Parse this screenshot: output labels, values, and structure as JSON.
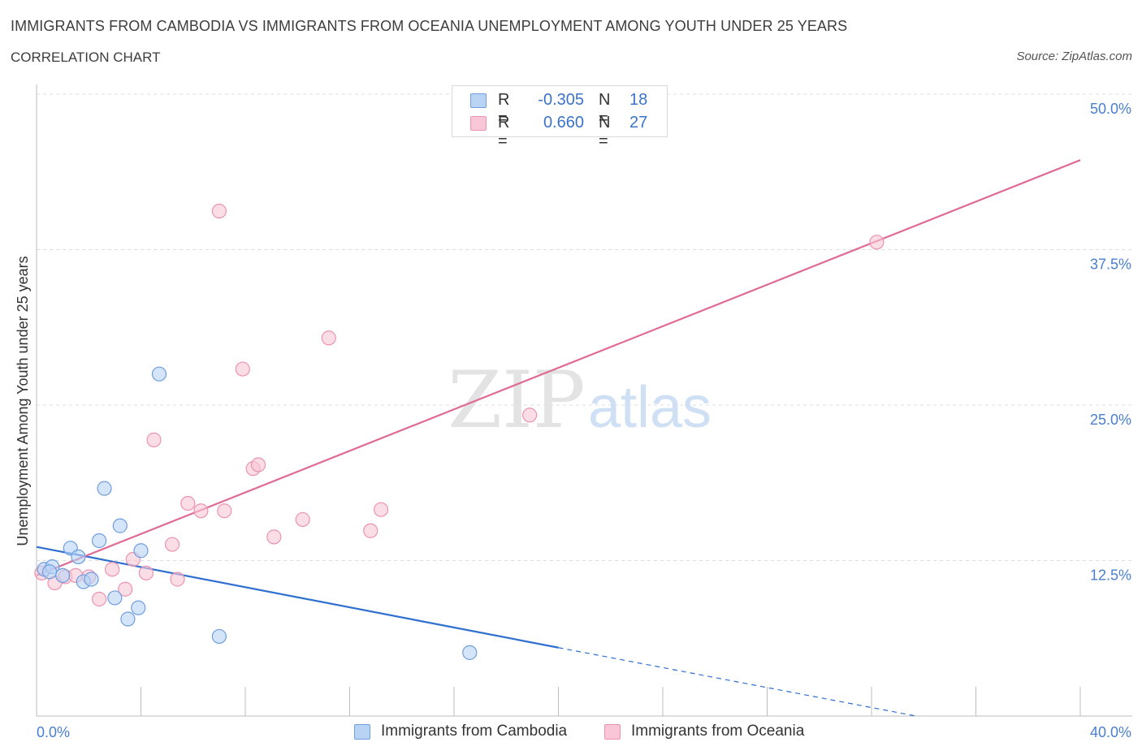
{
  "header": {
    "title": "IMMIGRANTS FROM CAMBODIA VS IMMIGRANTS FROM OCEANIA UNEMPLOYMENT AMONG YOUTH UNDER 25 YEARS",
    "subtitle": "CORRELATION CHART",
    "source": "Source: ZipAtlas.com"
  },
  "legend": {
    "series1": {
      "r_label": "R =",
      "r_value": "-0.305",
      "n_label": "N =",
      "n_value": "18"
    },
    "series2": {
      "r_label": "R =",
      "r_value": "0.660",
      "n_label": "N =",
      "n_value": "27"
    }
  },
  "bottom_legend": {
    "series1": "Immigrants from Cambodia",
    "series2": "Immigrants from Oceania"
  },
  "watermark": {
    "zip": "ZIP",
    "atlas": "atlas"
  },
  "colors": {
    "cambodia_fill": "#b9d3f5",
    "cambodia_stroke": "#6e9ee0",
    "cambodia_line": "#2f6fd0",
    "oceania_fill": "#f8c6d6",
    "oceania_stroke": "#ec93b1",
    "oceania_line": "#e06a96",
    "tick_text": "#4a7fd0"
  },
  "chart_data": {
    "type": "scatter",
    "title": "IMMIGRANTS FROM CAMBODIA VS IMMIGRANTS FROM OCEANIA UNEMPLOYMENT AMONG YOUTH UNDER 25 YEARS",
    "xlabel": "",
    "ylabel": "Unemployment Among Youth under 25 years",
    "xlim": [
      0,
      40
    ],
    "ylim": [
      0,
      50
    ],
    "x_tick_labels": [
      "0.0%",
      "40.0%"
    ],
    "y_ticks": [
      12.5,
      25.0,
      37.5,
      50.0
    ],
    "y_tick_labels": [
      "12.5%",
      "25.0%",
      "37.5%",
      "50.0%"
    ],
    "grid": true,
    "legend_position": "top-center",
    "series": [
      {
        "name": "Immigrants from Cambodia",
        "points": [
          [
            0.3,
            11.8
          ],
          [
            0.6,
            12.0
          ],
          [
            1.0,
            11.3
          ],
          [
            1.3,
            13.5
          ],
          [
            1.6,
            12.8
          ],
          [
            1.8,
            10.8
          ],
          [
            2.1,
            11.0
          ],
          [
            2.4,
            14.1
          ],
          [
            2.6,
            18.3
          ],
          [
            3.0,
            9.5
          ],
          [
            3.2,
            15.3
          ],
          [
            3.5,
            7.8
          ],
          [
            3.9,
            8.7
          ],
          [
            4.0,
            13.3
          ],
          [
            4.7,
            27.5
          ],
          [
            7.0,
            6.4
          ],
          [
            16.6,
            5.1
          ],
          [
            0.5,
            11.6
          ]
        ],
        "trend": {
          "x_start": 0,
          "y_start": 13.6,
          "x_solid_end": 20,
          "y_solid_end": 5.5,
          "x_end": 33.7,
          "y_end": 0
        }
      },
      {
        "name": "Immigrants from Oceania",
        "points": [
          [
            0.2,
            11.5
          ],
          [
            0.7,
            10.7
          ],
          [
            1.1,
            11.2
          ],
          [
            1.5,
            11.3
          ],
          [
            2.0,
            11.2
          ],
          [
            2.4,
            9.4
          ],
          [
            2.9,
            11.8
          ],
          [
            3.4,
            10.2
          ],
          [
            3.7,
            12.6
          ],
          [
            4.2,
            11.5
          ],
          [
            4.5,
            22.2
          ],
          [
            5.2,
            13.8
          ],
          [
            5.4,
            11.0
          ],
          [
            5.8,
            17.1
          ],
          [
            6.3,
            16.5
          ],
          [
            7.0,
            40.6
          ],
          [
            7.2,
            16.5
          ],
          [
            7.9,
            27.9
          ],
          [
            8.3,
            19.9
          ],
          [
            8.5,
            20.2
          ],
          [
            9.1,
            14.4
          ],
          [
            10.2,
            15.8
          ],
          [
            11.2,
            30.4
          ],
          [
            12.8,
            14.9
          ],
          [
            13.2,
            16.6
          ],
          [
            18.9,
            24.2
          ],
          [
            32.2,
            38.1
          ]
        ],
        "trend": {
          "x_start": 0,
          "y_start": 11.3,
          "x_end": 40,
          "y_end": 44.7
        }
      }
    ]
  }
}
